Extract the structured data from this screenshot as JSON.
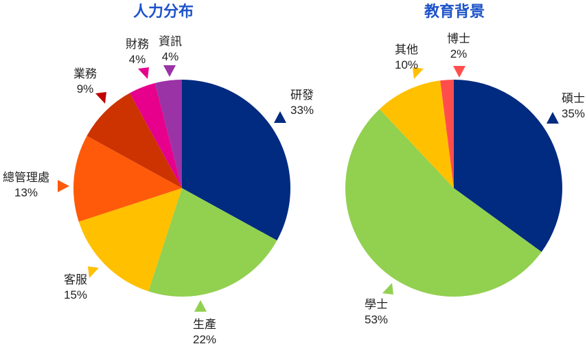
{
  "chart_data": [
    {
      "type": "pie",
      "title": "人力分布",
      "slices": [
        {
          "label": "研發",
          "pct_label": "33%",
          "value": 33,
          "color": "#002b80"
        },
        {
          "label": "生產",
          "pct_label": "22%",
          "value": 22,
          "color": "#92d050"
        },
        {
          "label": "客服",
          "pct_label": "15%",
          "value": 15,
          "color": "#ffc000"
        },
        {
          "label": "總管理處",
          "pct_label": "13%",
          "value": 13,
          "color": "#ff5a0a"
        },
        {
          "label": "業務",
          "pct_label": "9%",
          "value": 9,
          "color": "#cc3300"
        },
        {
          "label": "財務",
          "pct_label": "4%",
          "value": 4,
          "color": "#e6008c"
        },
        {
          "label": "資訊",
          "pct_label": "4%",
          "value": 4,
          "color": "#9933a6"
        }
      ],
      "marker_colors": [
        "#002b80",
        "#92d050",
        "#ffc000",
        "#ff5a0a",
        "#c00000",
        "#e6008c",
        "#9933a6"
      ]
    },
    {
      "type": "pie",
      "title": "教育背景",
      "slices": [
        {
          "label": "碩士",
          "pct_label": "35%",
          "value": 35,
          "color": "#002b80"
        },
        {
          "label": "學士",
          "pct_label": "53%",
          "value": 53,
          "color": "#92d050"
        },
        {
          "label": "其他",
          "pct_label": "10%",
          "value": 10,
          "color": "#ffc000"
        },
        {
          "label": "博士",
          "pct_label": "2%",
          "value": 2,
          "color": "#ff4d4d"
        }
      ],
      "marker_colors": [
        "#002b80",
        "#92d050",
        "#ffc000",
        "#ff4d4d"
      ]
    }
  ]
}
